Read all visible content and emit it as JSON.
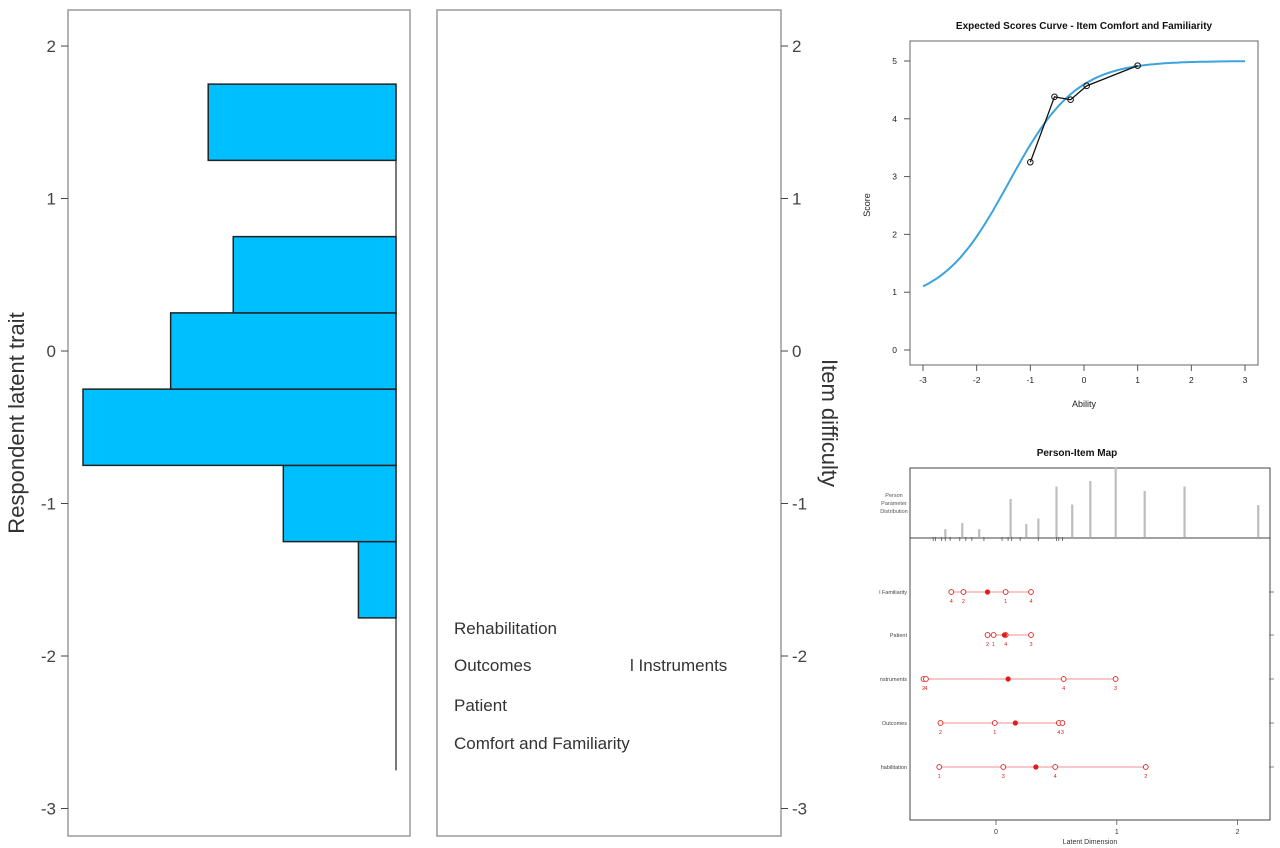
{
  "chart_data": [
    {
      "type": "bar",
      "orientation": "horizontal",
      "ylabel": "Respondent latent trait",
      "y_axis_side": "left",
      "ylim": [
        -3.0,
        2.2
      ],
      "yticks": [
        -3,
        -2,
        -1,
        0,
        1,
        2
      ],
      "xlim": [
        0,
        1
      ],
      "bin_ranges": [
        [
          -1.75,
          -1.25
        ],
        [
          -1.25,
          -0.75
        ],
        [
          -0.75,
          -0.25
        ],
        [
          -0.25,
          0.25
        ],
        [
          0.25,
          0.75
        ],
        [
          1.25,
          1.75
        ]
      ],
      "relative_frequency": [
        0.12,
        0.36,
        1.0,
        0.72,
        0.52,
        0.6
      ],
      "baseline_extent": [
        -2.75,
        1.75
      ],
      "color": "#00bfff"
    },
    {
      "type": "table",
      "ylabel": "Item difficulty",
      "y_axis_side": "right",
      "ylim": [
        -3.0,
        2.2
      ],
      "yticks": [
        -3,
        -2,
        -1,
        0,
        1,
        2
      ],
      "labels": [
        "Rehabilitation",
        "Outcomes",
        "l Instruments",
        "Patient",
        "Comfort and Familiarity"
      ]
    },
    {
      "type": "line",
      "title": "Expected Scores Curve - Item  Comfort and Familiarity",
      "xlabel": "Ability",
      "ylabel": "Score",
      "xlim": [
        -3,
        3
      ],
      "ylim": [
        0,
        5
      ],
      "xticks": [
        -3,
        -2,
        -1,
        0,
        1,
        2,
        3
      ],
      "yticks": [
        0,
        1,
        2,
        3,
        4,
        5
      ],
      "curve": {
        "min": 0.8,
        "max": 5.0,
        "center": -1.4,
        "slope": 1.6,
        "color": "#3ba3dd"
      },
      "series": [
        {
          "x": [
            -1.0,
            -0.55,
            -0.25,
            0.05,
            1.0
          ],
          "y": [
            3.25,
            4.38,
            4.33,
            4.57,
            4.92
          ]
        }
      ]
    },
    {
      "type": "scatter",
      "title": "Person-Item Map",
      "xlabel": "Latent Dimension",
      "xlim": [
        -0.65,
        2.28
      ],
      "xticks": [
        0,
        1,
        2
      ],
      "distribution_label": [
        "Person",
        "Parameter",
        "Distribution"
      ],
      "distribution": {
        "x": [
          -0.42,
          -0.28,
          -0.14,
          0.12,
          0.25,
          0.35,
          0.5,
          0.63,
          0.78,
          0.99,
          1.23,
          1.56,
          2.17
        ],
        "h": [
          0.14,
          0.25,
          0.14,
          0.68,
          0.23,
          0.33,
          0.9,
          0.58,
          1.0,
          1.25,
          0.82,
          0.9,
          0.57
        ]
      },
      "rug": [
        -0.52,
        -0.5,
        -0.45,
        -0.42,
        -0.38,
        -0.3,
        -0.25,
        -0.2,
        -0.1,
        0.05,
        0.1,
        0.13,
        0.2,
        0.35,
        0.5,
        0.52,
        0.55
      ],
      "items": [
        {
          "label": "l Familiarity",
          "location": -0.07,
          "thresholds": [
            -0.37,
            -0.27,
            0.08,
            0.29
          ],
          "threshold_labels": [
            "4",
            "2",
            "1",
            "4"
          ]
        },
        {
          "label": "Patient",
          "location": 0.07,
          "thresholds": [
            -0.07,
            -0.02,
            0.08,
            0.29
          ],
          "threshold_labels": [
            "2",
            "1",
            "4",
            "3"
          ]
        },
        {
          "label": "nstruments",
          "location": 0.1,
          "thresholds": [
            -0.6,
            -0.58,
            0.56,
            0.99
          ],
          "threshold_labels": [
            "2",
            "4",
            "4",
            "3"
          ]
        },
        {
          "label": "Outcomes",
          "location": 0.16,
          "thresholds": [
            -0.46,
            -0.01,
            0.52,
            0.55
          ],
          "threshold_labels": [
            "2",
            "1",
            "4",
            "3"
          ]
        },
        {
          "label": "habilitation",
          "location": 0.33,
          "thresholds": [
            -0.47,
            0.06,
            0.49,
            1.24
          ],
          "threshold_labels": [
            "1",
            "3",
            "4",
            "2"
          ]
        }
      ],
      "point_color": "#e21b1b",
      "line_color": "#f3a6a6"
    }
  ]
}
